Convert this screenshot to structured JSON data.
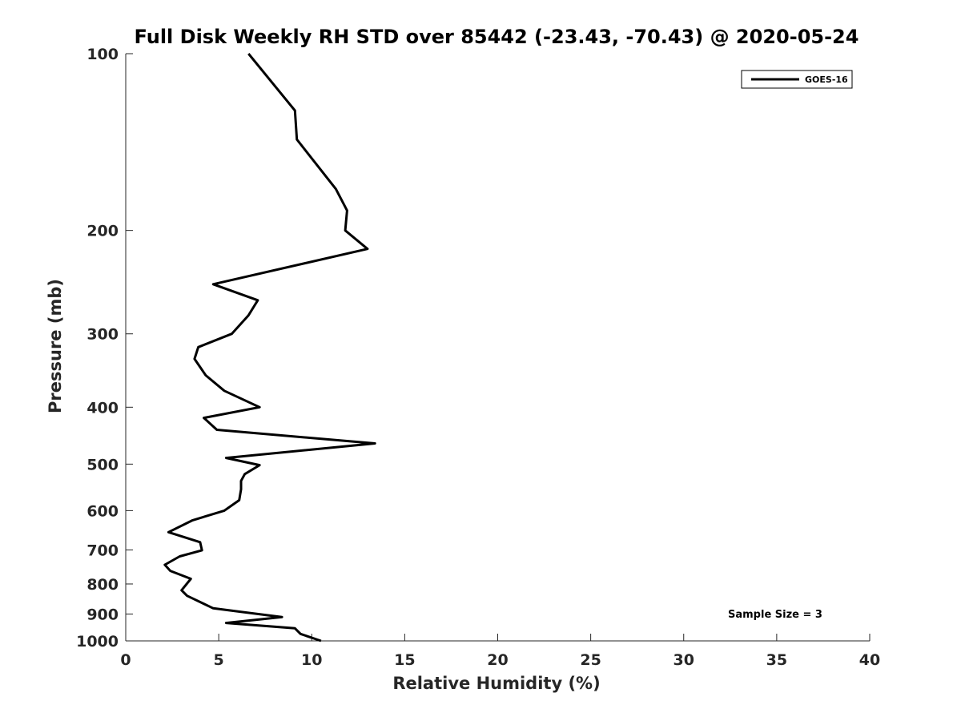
{
  "chart_data": {
    "type": "line",
    "title": "Full Disk Weekly RH STD over 85442 (-23.43, -70.43) @ 2020-05-24",
    "xlabel": "Relative Humidity (%)",
    "ylabel": "Pressure (mb)",
    "xlim": [
      0,
      40
    ],
    "ylim": [
      100,
      1000
    ],
    "yscale": "log",
    "y_reversed": true,
    "grid": false,
    "legend_position": "top-right",
    "x_ticks": [
      0,
      5,
      10,
      15,
      20,
      25,
      30,
      35,
      40
    ],
    "x_tick_labels": [
      "0",
      "5",
      "10",
      "15",
      "20",
      "25",
      "30",
      "35",
      "40"
    ],
    "y_ticks": [
      100,
      200,
      300,
      400,
      500,
      600,
      700,
      800,
      900,
      1000
    ],
    "y_tick_labels": [
      "100",
      "200",
      "300",
      "400",
      "500",
      "600",
      "700",
      "800",
      "900",
      "1000"
    ],
    "series": [
      {
        "name": "GOES-16",
        "color": "#000000",
        "x": [
          6.6,
          9.1,
          9.2,
          11.3,
          11.9,
          11.8,
          13.0,
          4.7,
          7.1,
          6.6,
          5.7,
          3.9,
          3.7,
          4.3,
          5.3,
          7.2,
          4.2,
          4.9,
          13.4,
          5.4,
          7.2,
          6.4,
          6.2,
          6.2,
          6.1,
          5.3,
          3.6,
          2.3,
          4.0,
          4.1,
          2.9,
          2.1,
          2.4,
          3.5,
          3.0,
          3.3,
          4.7,
          8.4,
          5.4,
          9.1,
          9.4,
          10.5
        ],
        "y": [
          100,
          125,
          140,
          170,
          185,
          200,
          215,
          247,
          263,
          279,
          300,
          316,
          331,
          353,
          375,
          400,
          417,
          437,
          461,
          488,
          502,
          520,
          534,
          552,
          576,
          600,
          623,
          653,
          679,
          701,
          718,
          742,
          760,
          784,
          820,
          838,
          880,
          911,
          932,
          952,
          973,
          1000
        ]
      }
    ],
    "annotations": [
      "Sample Size = 3"
    ]
  }
}
